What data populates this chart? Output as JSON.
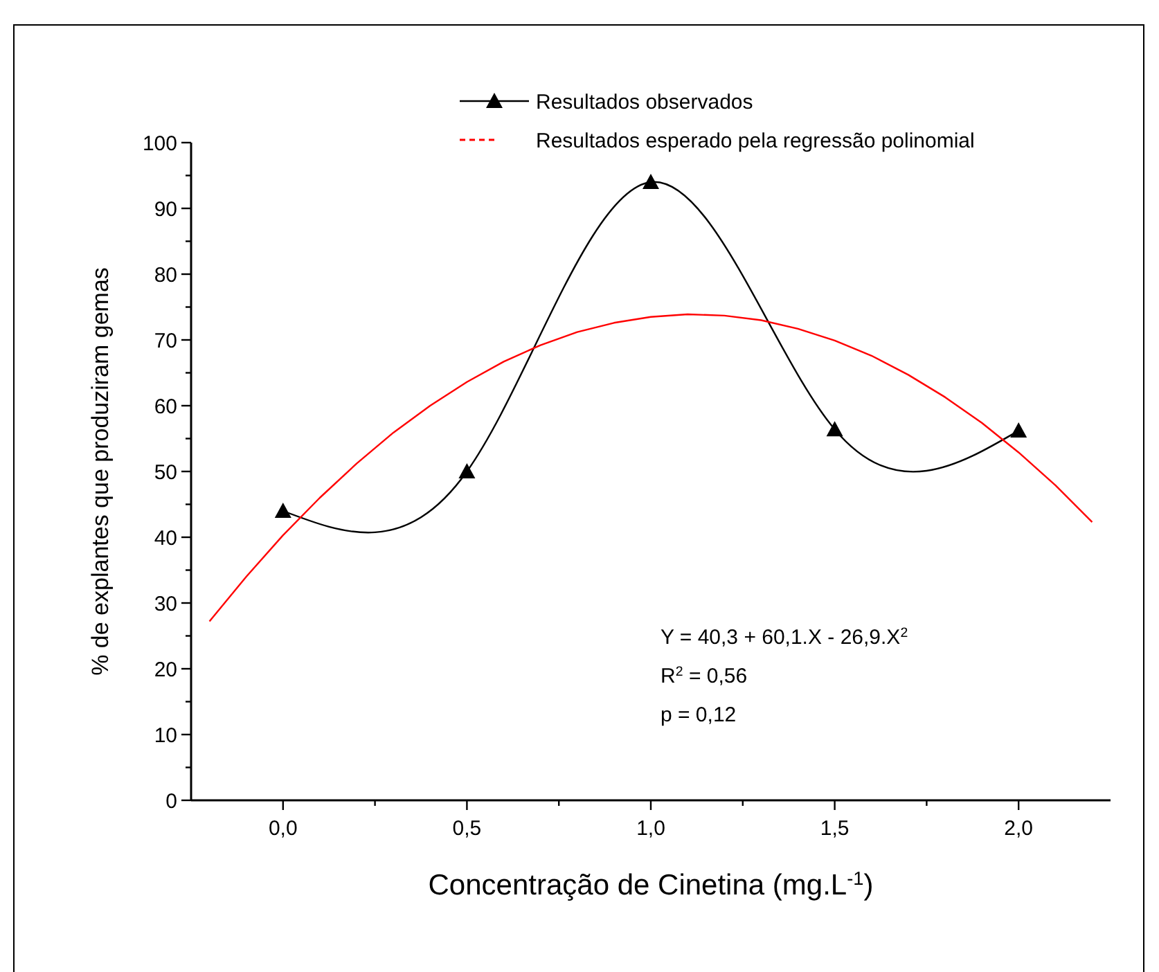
{
  "chart_data": {
    "type": "line",
    "xlabel": "Concentração de Cinetina (mg.L$^{-1}$)",
    "ylabel": "% de explantes que produziram gemas",
    "xlim": [
      -0.25,
      2.25
    ],
    "xticks": [
      {
        "value": 0,
        "label": "0,0"
      },
      {
        "value": 0.25,
        "label": null
      },
      {
        "value": 0.5,
        "label": "0,5"
      },
      {
        "value": 0.75,
        "label": null
      },
      {
        "value": 1,
        "label": "1,0"
      },
      {
        "value": 1.25,
        "label": null
      },
      {
        "value": 1.5,
        "label": "1,5"
      },
      {
        "value": 1.75,
        "label": null
      },
      {
        "value": 2,
        "label": "2,0"
      }
    ],
    "ylim": [
      0,
      100
    ],
    "yticks": [
      0,
      {
        "value": 5,
        "label": null
      },
      10,
      {
        "value": 15,
        "label": null
      },
      20,
      {
        "value": 25,
        "label": null
      },
      30,
      {
        "value": 35,
        "label": null
      },
      40,
      {
        "value": 45,
        "label": null
      },
      50,
      {
        "value": 55,
        "label": null
      },
      60,
      {
        "value": 65,
        "label": null
      },
      70,
      {
        "value": 75,
        "label": null
      },
      80,
      {
        "value": 85,
        "label": null
      },
      90,
      {
        "value": 95,
        "label": null
      },
      100
    ],
    "grid": false,
    "legend": "top",
    "series": [
      {
        "name": "Resultados observados",
        "color": "#000000",
        "marker": "triangle",
        "x": [
          0,
          0.5,
          1,
          1.5,
          2
        ],
        "values": [
          44,
          50,
          94,
          56.4,
          56.2
        ]
      },
      {
        "name": "Resultados esperado pela regressão polinomial",
        "color": "#ff0000",
        "marker": "none",
        "x": [
          -0.2,
          -0.1,
          0,
          0.1,
          0.2,
          0.3,
          0.4,
          0.5,
          0.6,
          0.7,
          0.8,
          0.9,
          1,
          1.1,
          1.2,
          1.3,
          1.4,
          1.5,
          1.6,
          1.7,
          1.8,
          1.9,
          2,
          2.1,
          2.2
        ],
        "values": [
          27.2,
          34,
          40.3,
          46,
          51.2,
          55.9,
          60,
          63.6,
          66.7,
          69.2,
          71.2,
          72.6,
          73.5,
          73.9,
          73.7,
          73,
          71.7,
          69.9,
          67.6,
          64.7,
          61.3,
          57.4,
          52.9,
          47.9,
          42.3
        ]
      }
    ],
    "annotations": [
      "Y = 40,3 + 60,1.X - 26,9.X$^{2}$",
      "R$^{2}$ = 0,56",
      "p = 0,12"
    ]
  }
}
